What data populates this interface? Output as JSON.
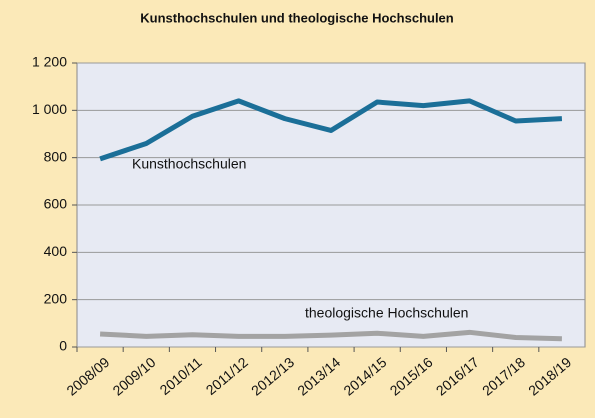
{
  "chart_data": {
    "type": "line",
    "title": "Kunsthochschulen und theologische Hochschulen",
    "categories": [
      "2008/09",
      "2009/10",
      "2010/11",
      "2011/12",
      "2012/13",
      "2013/14",
      "2014/15",
      "2015/16",
      "2016/17",
      "2017/18",
      "2018/19"
    ],
    "series": [
      {
        "name": "Kunsthochschulen",
        "color": "#1b6f98",
        "values": [
          795,
          860,
          975,
          1040,
          965,
          915,
          1035,
          1020,
          1040,
          955,
          965
        ]
      },
      {
        "name": "theologische Hochschulen",
        "color": "#a3a3a3",
        "values": [
          55,
          45,
          52,
          45,
          45,
          50,
          58,
          45,
          62,
          40,
          35
        ]
      }
    ],
    "ylim": [
      0,
      1200
    ],
    "yticks": [
      0,
      200,
      400,
      600,
      800,
      {
        "value": 1000,
        "label": "1 000"
      },
      {
        "value": 1200,
        "label": "1 200"
      }
    ],
    "grid": true
  }
}
